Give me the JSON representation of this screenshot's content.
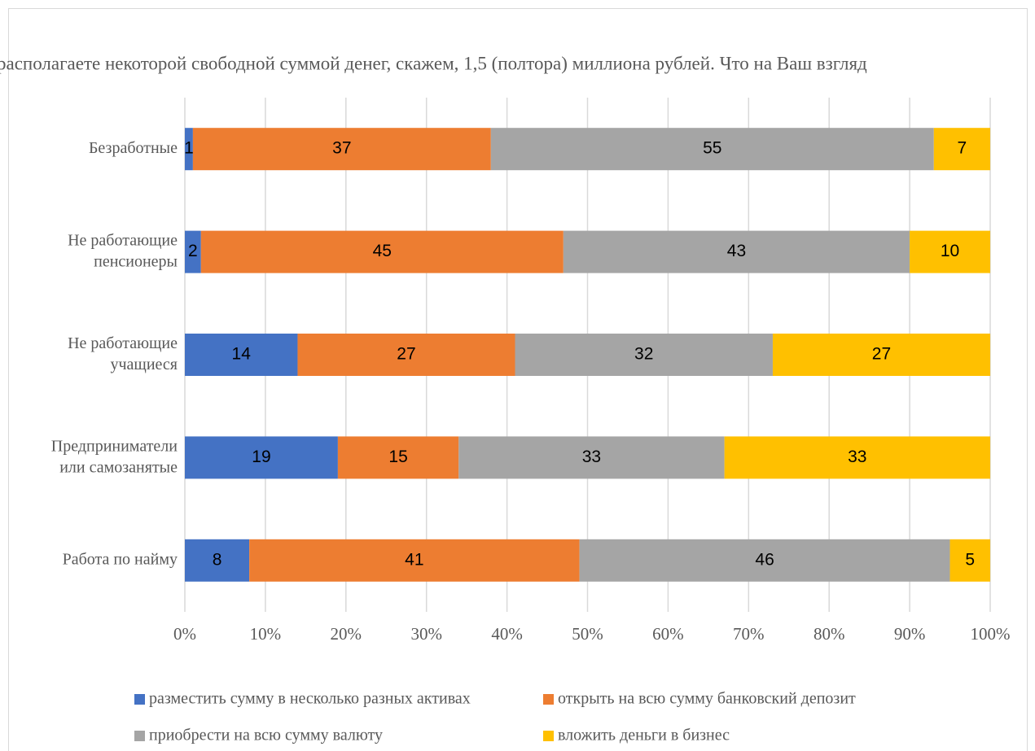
{
  "chart_data": {
    "type": "stacked_bar",
    "orientation": "horizontal",
    "title": "располагаете некоторой свободной суммой денег, скажем, 1,5 (полтора) миллиона рублей. Что на Ваш взгляд",
    "categories": [
      "Безработные",
      "Не работающие\nпенсионеры",
      "Не работающие\nучащиеся",
      "Предприниматели\nили самозанятые",
      "Работа по найму"
    ],
    "series": [
      {
        "name": "разместить сумму в несколько разных активах",
        "color": "#4472c4",
        "values": [
          1,
          2,
          14,
          19,
          8
        ]
      },
      {
        "name": "открыть на всю сумму банковский депозит",
        "color": "#ed7d31",
        "values": [
          37,
          45,
          27,
          15,
          41
        ]
      },
      {
        "name": "приобрести на всю сумму валюту",
        "color": "#a5a5a5",
        "values": [
          55,
          43,
          32,
          33,
          46
        ]
      },
      {
        "name": "вложить деньги в бизнес",
        "color": "#ffc000",
        "values": [
          7,
          10,
          27,
          33,
          5
        ]
      }
    ],
    "xlim": [
      0,
      100
    ],
    "xticks": [
      {
        "value": 0,
        "label": "0%"
      },
      {
        "value": 10,
        "label": "10%"
      },
      {
        "value": 20,
        "label": "20%"
      },
      {
        "value": 30,
        "label": "30%"
      },
      {
        "value": 40,
        "label": "40%"
      },
      {
        "value": 50,
        "label": "50%"
      },
      {
        "value": 60,
        "label": "60%"
      },
      {
        "value": 70,
        "label": "70%"
      },
      {
        "value": 80,
        "label": "80%"
      },
      {
        "value": 90,
        "label": "90%"
      },
      {
        "value": 100,
        "label": "100%"
      }
    ],
    "grid": true,
    "legend": "bottom"
  }
}
